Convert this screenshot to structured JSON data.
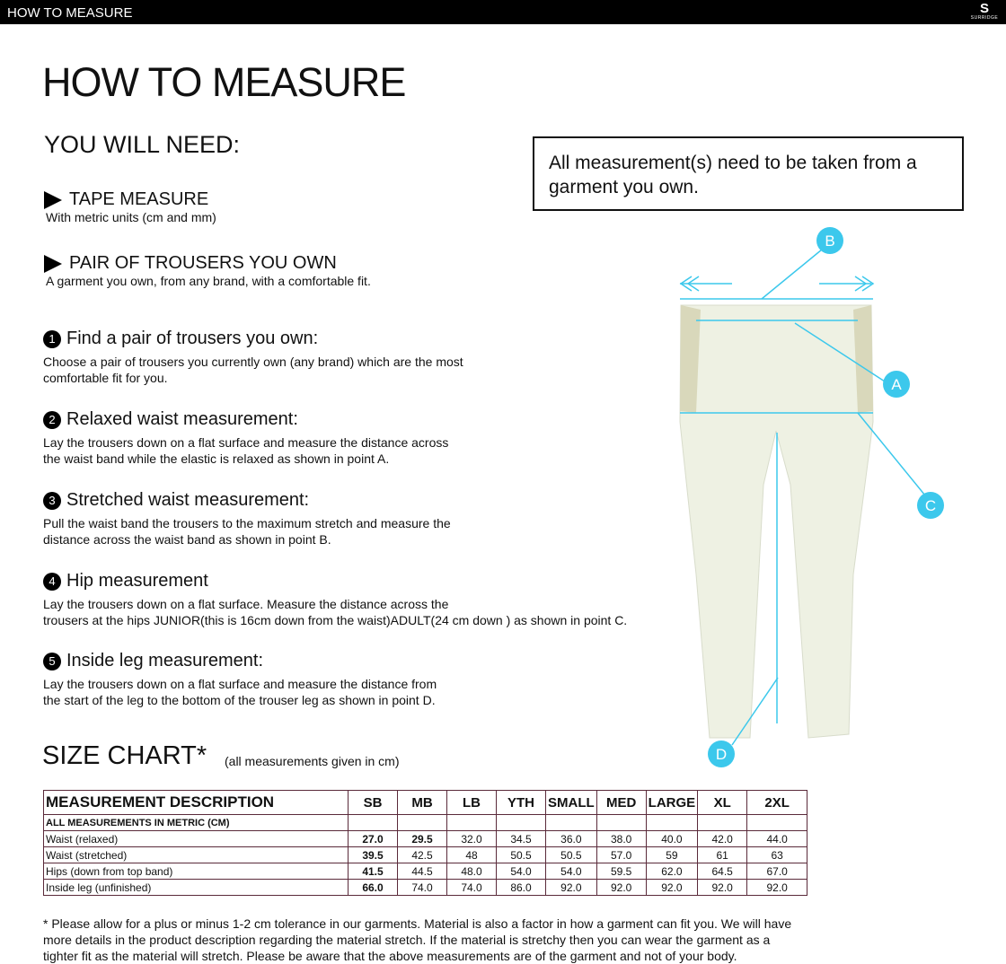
{
  "topbar": {
    "title": "HOW TO MEASURE",
    "logo": "SURRIDGE"
  },
  "title": "HOW TO MEASURE",
  "need": {
    "heading": "YOU WILL NEED:",
    "items": [
      {
        "label": "TAPE MEASURE",
        "sub": "With metric units (cm and mm)"
      },
      {
        "label": "PAIR OF TROUSERS YOU OWN",
        "sub": "A garment you own, from any brand, with a comfortable fit."
      }
    ]
  },
  "steps": [
    {
      "num": "1",
      "title": "Find a pair of trousers you own:",
      "lines": [
        "Choose a pair of trousers you currently own (any brand) which are the most",
        "comfortable fit for you."
      ]
    },
    {
      "num": "2",
      "title": "Relaxed waist measurement:",
      "lines": [
        "Lay the trousers down on a flat surface and measure the distance across",
        "the waist band while the elastic is relaxed as shown in point A."
      ]
    },
    {
      "num": "3",
      "title": "Stretched waist measurement:",
      "lines": [
        "Pull the waist band the trousers to the maximum stretch and measure the",
        "distance across the waist band as shown in point B."
      ]
    },
    {
      "num": "4",
      "title": "Hip measurement",
      "lines": [
        "Lay the trousers down on a flat surface. Measure the distance across the",
        "trousers at the hips JUNIOR(this is 16cm down from the waist)ADULT(24 cm down ) as shown in point C."
      ]
    },
    {
      "num": "5",
      "title": "Inside leg measurement:",
      "lines": [
        "Lay the trousers down on a flat surface and measure the distance from",
        "the start of the leg to the bottom of the trouser leg as shown in point D."
      ]
    }
  ],
  "note": "All measurement(s) need to be taken from a garment you own.",
  "diagram": {
    "labels": [
      "A",
      "B",
      "C",
      "D"
    ],
    "accent": "#3cc8ec"
  },
  "size_chart": {
    "title": "SIZE CHART*",
    "units": "(all measurements given in cm)",
    "headers": [
      "MEASUREMENT DESCRIPTION",
      "SB",
      "MB",
      "LB",
      "YTH",
      "SMALL",
      "MED",
      "LARGE",
      "XL",
      "2XL"
    ],
    "subheader": "ALL MEASUREMENTS IN METRIC (CM)",
    "rows": [
      {
        "label": "Waist (relaxed)",
        "values": [
          "27.0",
          "29.5",
          "32.0",
          "34.5",
          "36.0",
          "38.0",
          "40.0",
          "42.0",
          "44.0"
        ]
      },
      {
        "label": "Waist (stretched)",
        "values": [
          "39.5",
          "42.5",
          "48",
          "50.5",
          "50.5",
          "57.0",
          "59",
          "61",
          "63"
        ]
      },
      {
        "label": "Hips (down from top band)",
        "values": [
          "41.5",
          "44.5",
          "48.0",
          "54.0",
          "54.0",
          "59.5",
          "62.0",
          "64.5",
          "67.0"
        ]
      },
      {
        "label": "Inside leg (unfinished)",
        "values": [
          "66.0",
          "74.0",
          "74.0",
          "86.0",
          "92.0",
          "92.0",
          "92.0",
          "92.0",
          "92.0"
        ]
      }
    ]
  },
  "footnote": "* Please allow for a plus or minus 1-2 cm tolerance in our garments. Material is also a factor in how a garment can fit you. We will have more details in the product description regarding the material stretch.  If the material is stretchy then you can wear the garment as a tighter fit as the material will stretch.  Please be aware that the above measurements are of the garment and not of your body."
}
